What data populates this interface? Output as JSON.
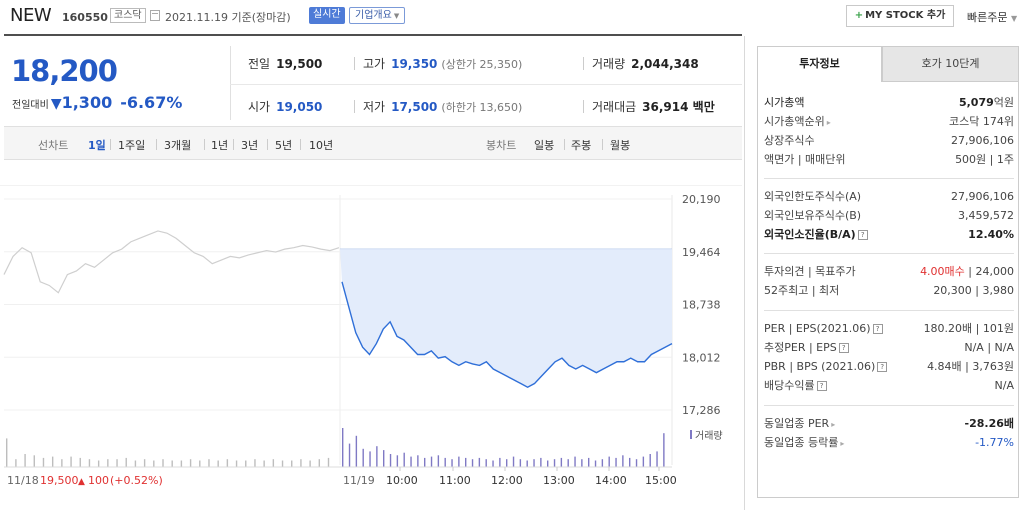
{
  "header": {
    "stock_name": "NEW",
    "stock_code": "160550",
    "market": "코스닥",
    "date_text": "2021.11.19 기준(장마감)",
    "realtime_label": "실시간",
    "company_overview_label": "기업개요",
    "my_stock_label": "MY STOCK 추가",
    "quick_order_label": "빠른주문"
  },
  "summary": {
    "current_price": "18,200",
    "change_label": "전일대비",
    "change_value": "1,300",
    "change_percent": "-6.67%",
    "fields": {
      "prev_close": {
        "label": "전일",
        "value": "19,500"
      },
      "high": {
        "label": "고가",
        "value": "19,350",
        "sub": "(상한가 25,350)"
      },
      "volume": {
        "label": "거래량",
        "value": "2,044,348"
      },
      "open": {
        "label": "시가",
        "value": "19,050"
      },
      "low": {
        "label": "저가",
        "value": "17,500",
        "sub": "(하한가 13,650)"
      },
      "trade_value": {
        "label": "거래대금",
        "value": "36,914 백만"
      }
    }
  },
  "period_bar": {
    "line_chart_label": "선차트",
    "line_periods": [
      "1일",
      "1주일",
      "3개월",
      "1년",
      "3년",
      "5년",
      "10년"
    ],
    "selected_period": "1일",
    "candle_chart_label": "봉차트",
    "candle_periods": [
      "일봉",
      "주봉",
      "월봉"
    ]
  },
  "chart_data": {
    "type": "line",
    "title": "",
    "y_ticks": [
      "20,190",
      "19,464",
      "18,738",
      "18,012",
      "17,286"
    ],
    "ylim": [
      17286,
      20190
    ],
    "baseline_price": 19500,
    "x_labels": [
      "11/18",
      "11/19",
      "10:00",
      "11:00",
      "12:00",
      "13:00",
      "14:00",
      "15:00"
    ],
    "prev_day_note": {
      "date": "11/18",
      "price": "19,500",
      "change": "100",
      "percent": "(+0.52%)"
    },
    "volume_legend": "거래량",
    "series": [
      {
        "day": "11/18",
        "prices": [
          19150,
          19400,
          19520,
          19450,
          19050,
          19000,
          18900,
          19150,
          19200,
          19300,
          19250,
          19350,
          19450,
          19500,
          19600,
          19650,
          19700,
          19750,
          19720,
          19650,
          19550,
          19450,
          19400,
          19300,
          19350,
          19400,
          19380,
          19420,
          19450,
          19480,
          19460,
          19500,
          19520,
          19550,
          19530,
          19500,
          19480,
          19520
        ]
      },
      {
        "day": "11/19",
        "prices": [
          19050,
          18700,
          18350,
          18150,
          18050,
          18200,
          18400,
          18500,
          18300,
          18250,
          18150,
          18050,
          18050,
          18100,
          18000,
          18020,
          17950,
          17900,
          17950,
          17920,
          17900,
          17950,
          17850,
          17800,
          17750,
          17700,
          17650,
          17600,
          17650,
          17750,
          17850,
          17950,
          18000,
          17900,
          17850,
          17900,
          17850,
          17800,
          17850,
          17900,
          17950,
          17950,
          18000,
          17950,
          17950,
          18050,
          18100,
          18150,
          18200
        ]
      }
    ],
    "volume": {
      "day1": [
        22,
        6,
        10,
        9,
        7,
        8,
        6,
        8,
        7,
        6,
        5,
        6,
        6,
        7,
        5,
        6,
        5,
        6,
        5,
        5,
        6,
        5,
        6,
        5,
        6,
        5,
        5,
        6,
        5,
        6,
        5,
        5,
        6,
        5,
        6,
        7
      ],
      "day2": [
        30,
        18,
        24,
        14,
        12,
        16,
        13,
        10,
        9,
        11,
        8,
        9,
        7,
        8,
        9,
        7,
        6,
        8,
        7,
        6,
        7,
        6,
        5,
        7,
        6,
        8,
        6,
        5,
        6,
        7,
        5,
        6,
        7,
        6,
        8,
        6,
        7,
        5,
        6,
        8,
        7,
        9,
        7,
        6,
        8,
        10,
        12,
        26
      ]
    }
  },
  "invest_info": {
    "tab_active": "투자정보",
    "tab_inactive": "호가 10단계",
    "rows": {
      "market_cap": {
        "label": "시가총액",
        "value": "5,079",
        "unit": "억원"
      },
      "market_cap_rank": {
        "label": "시가총액순위",
        "value": "코스닥 174위"
      },
      "listed_shares": {
        "label": "상장주식수",
        "value": "27,906,106"
      },
      "par_value": {
        "label": "액면가 | 매매단위",
        "value": "500원 | 1주"
      },
      "foreign_limit": {
        "label": "외국인한도주식수(A)",
        "value": "27,906,106"
      },
      "foreign_hold": {
        "label": "외국인보유주식수(B)",
        "value": "3,459,572"
      },
      "foreign_ratio": {
        "label": "외국인소진율(B/A)",
        "value": "12.40%"
      },
      "opinion": {
        "label": "투자의견 | 목표주가",
        "value_red": "4.00매수",
        "value": "24,000"
      },
      "high_low_52": {
        "label": "52주최고 | 최저",
        "value": "20,300 | 3,980"
      },
      "per_eps": {
        "label": "PER | EPS(2021.06)",
        "value": "180.20배 | 101원"
      },
      "est_per_eps": {
        "label": "추정PER | EPS",
        "value": "N/A | N/A"
      },
      "pbr_bps": {
        "label": "PBR | BPS (2021.06)",
        "value": "4.84배 | 3,763원"
      },
      "dividend": {
        "label": "배당수익률",
        "value": "N/A"
      },
      "sector_per": {
        "label": "동일업종 PER",
        "value": "-28.26배"
      },
      "sector_change": {
        "label": "동일업종 등락률",
        "value": "-1.77%"
      }
    }
  }
}
